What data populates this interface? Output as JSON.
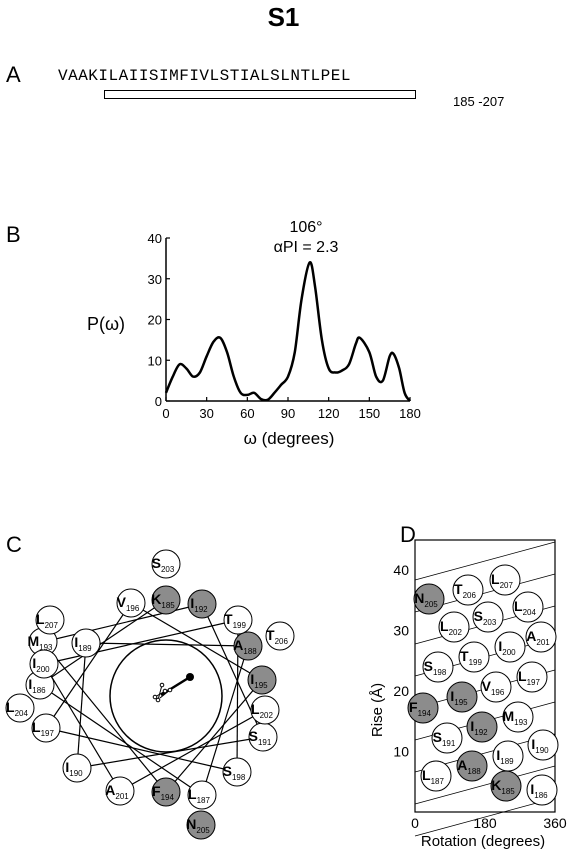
{
  "figure_title": "S1",
  "panel_a": {
    "label": "A",
    "sequence": "VAAKILAIISIMFIVLSTIALSLNTLPEL",
    "range": "185 -207"
  },
  "panel_b": {
    "label": "B",
    "peak_label": "106°",
    "api_label": "αPI = 2.3"
  },
  "panel_c": {
    "label": "C",
    "residues": [
      {
        "aa": "K",
        "num": "185",
        "shaded": true
      },
      {
        "aa": "I",
        "num": "186",
        "shaded": false
      },
      {
        "aa": "L",
        "num": "187",
        "shaded": false
      },
      {
        "aa": "A",
        "num": "188",
        "shaded": true
      },
      {
        "aa": "I",
        "num": "189",
        "shaded": false
      },
      {
        "aa": "I",
        "num": "190",
        "shaded": false
      },
      {
        "aa": "S",
        "num": "191",
        "shaded": false
      },
      {
        "aa": "I",
        "num": "192",
        "shaded": true
      },
      {
        "aa": "M",
        "num": "193",
        "shaded": false
      },
      {
        "aa": "F",
        "num": "194",
        "shaded": true
      },
      {
        "aa": "I",
        "num": "195",
        "shaded": true
      },
      {
        "aa": "L",
        "num": "197",
        "shaded": false
      },
      {
        "aa": "S",
        "num": "198",
        "shaded": false
      },
      {
        "aa": "T",
        "num": "199",
        "shaded": false
      },
      {
        "aa": "I",
        "num": "200",
        "shaded": false
      },
      {
        "aa": "A",
        "num": "201",
        "shaded": false
      },
      {
        "aa": "L",
        "num": "202",
        "shaded": false
      },
      {
        "aa": "S",
        "num": "203",
        "shaded": false
      },
      {
        "aa": "L",
        "num": "204",
        "shaded": false
      },
      {
        "aa": "N",
        "num": "205",
        "shaded": true
      },
      {
        "aa": "T",
        "num": "206",
        "shaded": false
      },
      {
        "aa": "L",
        "num": "207",
        "shaded": false
      },
      {
        "aa": "V",
        "num": "196",
        "shaded": false
      }
    ]
  },
  "panel_d": {
    "label": "D",
    "residues": [
      {
        "aa": "K",
        "num": "185",
        "shaded": true
      },
      {
        "aa": "I",
        "num": "186",
        "shaded": false
      },
      {
        "aa": "L",
        "num": "187",
        "shaded": false
      },
      {
        "aa": "A",
        "num": "188",
        "shaded": true
      },
      {
        "aa": "I",
        "num": "189",
        "shaded": false
      },
      {
        "aa": "I",
        "num": "190",
        "shaded": false
      },
      {
        "aa": "S",
        "num": "191",
        "shaded": false
      },
      {
        "aa": "I",
        "num": "192",
        "shaded": true
      },
      {
        "aa": "M",
        "num": "193",
        "shaded": false
      },
      {
        "aa": "F",
        "num": "194",
        "shaded": true
      },
      {
        "aa": "I",
        "num": "195",
        "shaded": true
      },
      {
        "aa": "V",
        "num": "196",
        "shaded": false
      },
      {
        "aa": "L",
        "num": "197",
        "shaded": false
      },
      {
        "aa": "S",
        "num": "198",
        "shaded": false
      },
      {
        "aa": "T",
        "num": "199",
        "shaded": false
      },
      {
        "aa": "I",
        "num": "200",
        "shaded": false
      },
      {
        "aa": "A",
        "num": "201",
        "shaded": false
      },
      {
        "aa": "L",
        "num": "202",
        "shaded": false
      },
      {
        "aa": "S",
        "num": "203",
        "shaded": false
      },
      {
        "aa": "L",
        "num": "204",
        "shaded": false
      },
      {
        "aa": "N",
        "num": "205",
        "shaded": true
      },
      {
        "aa": "T",
        "num": "206",
        "shaded": false
      },
      {
        "aa": "L",
        "num": "207",
        "shaded": false
      }
    ]
  },
  "chart_data": [
    {
      "type": "line",
      "xlabel": "ω (degrees)",
      "ylabel": "P(ω)",
      "xlim": [
        0,
        180
      ],
      "ylim": [
        0,
        40
      ],
      "xticks": [
        "0",
        "30",
        "60",
        "90",
        "120",
        "150",
        "180"
      ],
      "yticks": [
        "0",
        "10",
        "20",
        "30",
        "40"
      ],
      "x": [
        0,
        5,
        10,
        15,
        20,
        25,
        30,
        35,
        40,
        45,
        50,
        55,
        60,
        65,
        70,
        75,
        80,
        85,
        90,
        95,
        100,
        106,
        110,
        115,
        120,
        125,
        130,
        135,
        140,
        143,
        150,
        155,
        160,
        165,
        168,
        172,
        176,
        180
      ],
      "y": [
        2,
        6,
        9,
        8,
        6,
        7,
        11,
        14.5,
        15.5,
        12,
        6,
        2,
        1.5,
        2,
        0.5,
        0.3,
        2,
        4,
        6,
        12,
        25,
        34,
        28,
        15,
        8,
        7,
        7.5,
        9,
        14,
        15.5,
        12,
        6,
        5,
        11,
        11.5,
        8,
        2,
        0
      ]
    },
    {
      "type": "scatter",
      "xlabel": "Rotation (degrees)",
      "ylabel": "Rise (Å)",
      "xlim": [
        0,
        360
      ],
      "ylim": [
        0,
        45
      ],
      "xticks": [
        "0",
        "180",
        "360"
      ],
      "yticks": [
        "10",
        "20",
        "30",
        "40"
      ]
    }
  ]
}
